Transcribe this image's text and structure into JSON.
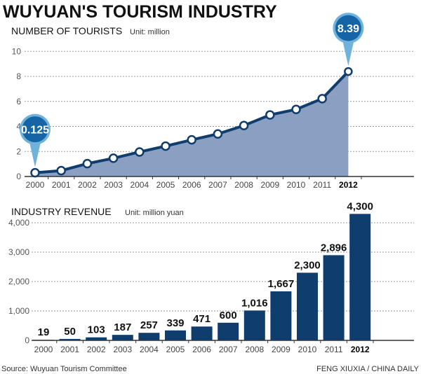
{
  "title": "WUYUAN'S TOURISM INDUSTRY",
  "source": "Source: Wuyuan Tourism Committee",
  "credit": "FENG XIUXIA / CHINA DAILY",
  "colors": {
    "line": "#0f3d6e",
    "area": "#8a9fc2",
    "bar": "#0f3d6e",
    "callout": "#1565a6",
    "callout_tip": "#6fb3dc"
  },
  "chart_data": [
    {
      "type": "area",
      "title": "NUMBER OF TOURISTS",
      "unit": "Unit: million",
      "categories": [
        "2000",
        "2001",
        "2002",
        "2003",
        "2004",
        "2005",
        "2006",
        "2007",
        "2008",
        "2009",
        "2010",
        "2011",
        "2012"
      ],
      "values": [
        0.125,
        0.47,
        1.03,
        1.46,
        1.96,
        2.43,
        2.93,
        3.4,
        4.07,
        4.92,
        5.36,
        6.22,
        8.39
      ],
      "callouts": [
        {
          "index": 0,
          "label": "0.125"
        },
        {
          "index": 12,
          "label": "8.39"
        }
      ],
      "yticks": [
        "0",
        "2",
        "4",
        "6",
        "8",
        "10"
      ],
      "ylim": [
        0,
        10
      ],
      "grid": true
    },
    {
      "type": "bar",
      "title": "INDUSTRY REVENUE",
      "unit": "Unit: million yuan",
      "categories": [
        "2000",
        "2001",
        "2002",
        "2003",
        "2004",
        "2005",
        "2006",
        "2007",
        "2008",
        "2009",
        "2010",
        "2011",
        "2012"
      ],
      "values": [
        19,
        50,
        103,
        187,
        257,
        339,
        471,
        600,
        1016,
        1667,
        2300,
        2896,
        4300
      ],
      "labels": [
        "19",
        "50",
        "103",
        "187",
        "257",
        "339",
        "471",
        "600",
        "1,016",
        "1,667",
        "2,300",
        "2,896",
        "4,300"
      ],
      "yticks": [
        "0",
        "1,000",
        "2,000",
        "3,000",
        "4,000"
      ],
      "ylim": [
        0,
        4000
      ],
      "grid": true
    }
  ]
}
